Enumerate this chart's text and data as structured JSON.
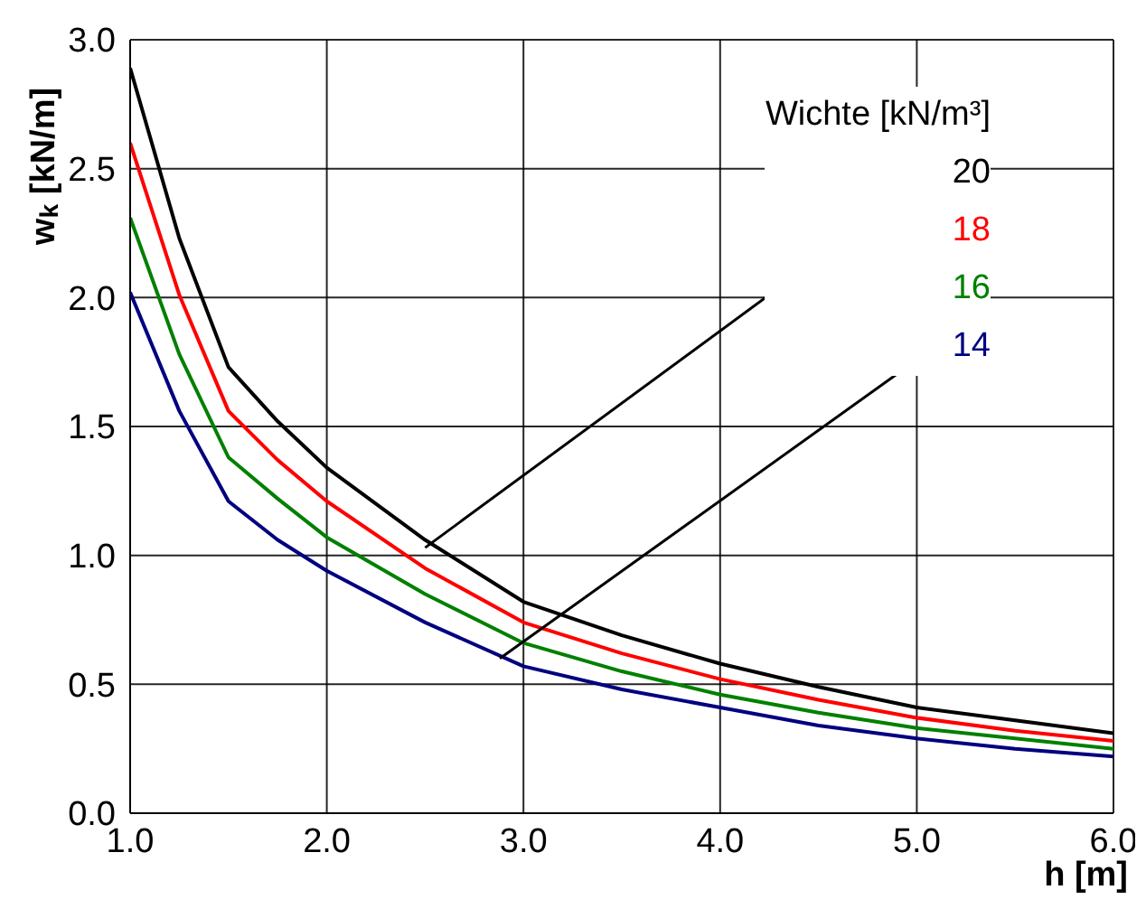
{
  "chart_data": {
    "type": "line",
    "xlabel": "h [m]",
    "ylabel": "w$_{k}$ [kN/m]",
    "legend_title": "Wichte [kN/m³]",
    "legend": "top right",
    "grid": true,
    "marker": "none",
    "line_style": "solid",
    "x": [
      1,
      1.25,
      1.5,
      1.75,
      2,
      2.5,
      3,
      3.5,
      4,
      4.5,
      5,
      5.5,
      6
    ],
    "xlim": [
      1,
      6
    ],
    "xticks": [
      {
        "value": 1,
        "label": "1.0"
      },
      {
        "value": 2,
        "label": "2.0"
      },
      {
        "value": 3,
        "label": "3.0"
      },
      {
        "value": 4,
        "label": "4.0"
      },
      {
        "value": 5,
        "label": "5.0"
      },
      {
        "value": 6,
        "label": "6.0"
      }
    ],
    "ylim": [
      0,
      3
    ],
    "yticks": [
      {
        "value": 0,
        "label": "0.0"
      },
      0.5,
      {
        "value": 1,
        "label": "1.0"
      },
      1.5,
      {
        "value": 2,
        "label": "2.0"
      },
      2.5,
      {
        "value": 3,
        "label": "3.0"
      }
    ],
    "series": [
      {
        "name": "20",
        "color": "#000000",
        "values": [
          2.89,
          2.23,
          1.73,
          1.52,
          1.34,
          1.06,
          0.82,
          0.69,
          0.58,
          0.49,
          0.41,
          0.36,
          0.31
        ]
      },
      {
        "name": "18",
        "color": "#ff0000",
        "values": [
          2.6,
          2.01,
          1.56,
          1.37,
          1.21,
          0.95,
          0.74,
          0.62,
          0.52,
          0.44,
          0.37,
          0.32,
          0.28
        ]
      },
      {
        "name": "16",
        "color": "#008000",
        "values": [
          2.31,
          1.78,
          1.38,
          1.22,
          1.07,
          0.85,
          0.66,
          0.55,
          0.46,
          0.39,
          0.33,
          0.29,
          0.25
        ]
      },
      {
        "name": "14",
        "color": "#000080",
        "values": [
          2.02,
          1.56,
          1.21,
          1.06,
          0.94,
          0.74,
          0.57,
          0.48,
          0.41,
          0.34,
          0.29,
          0.25,
          0.22
        ]
      }
    ]
  }
}
